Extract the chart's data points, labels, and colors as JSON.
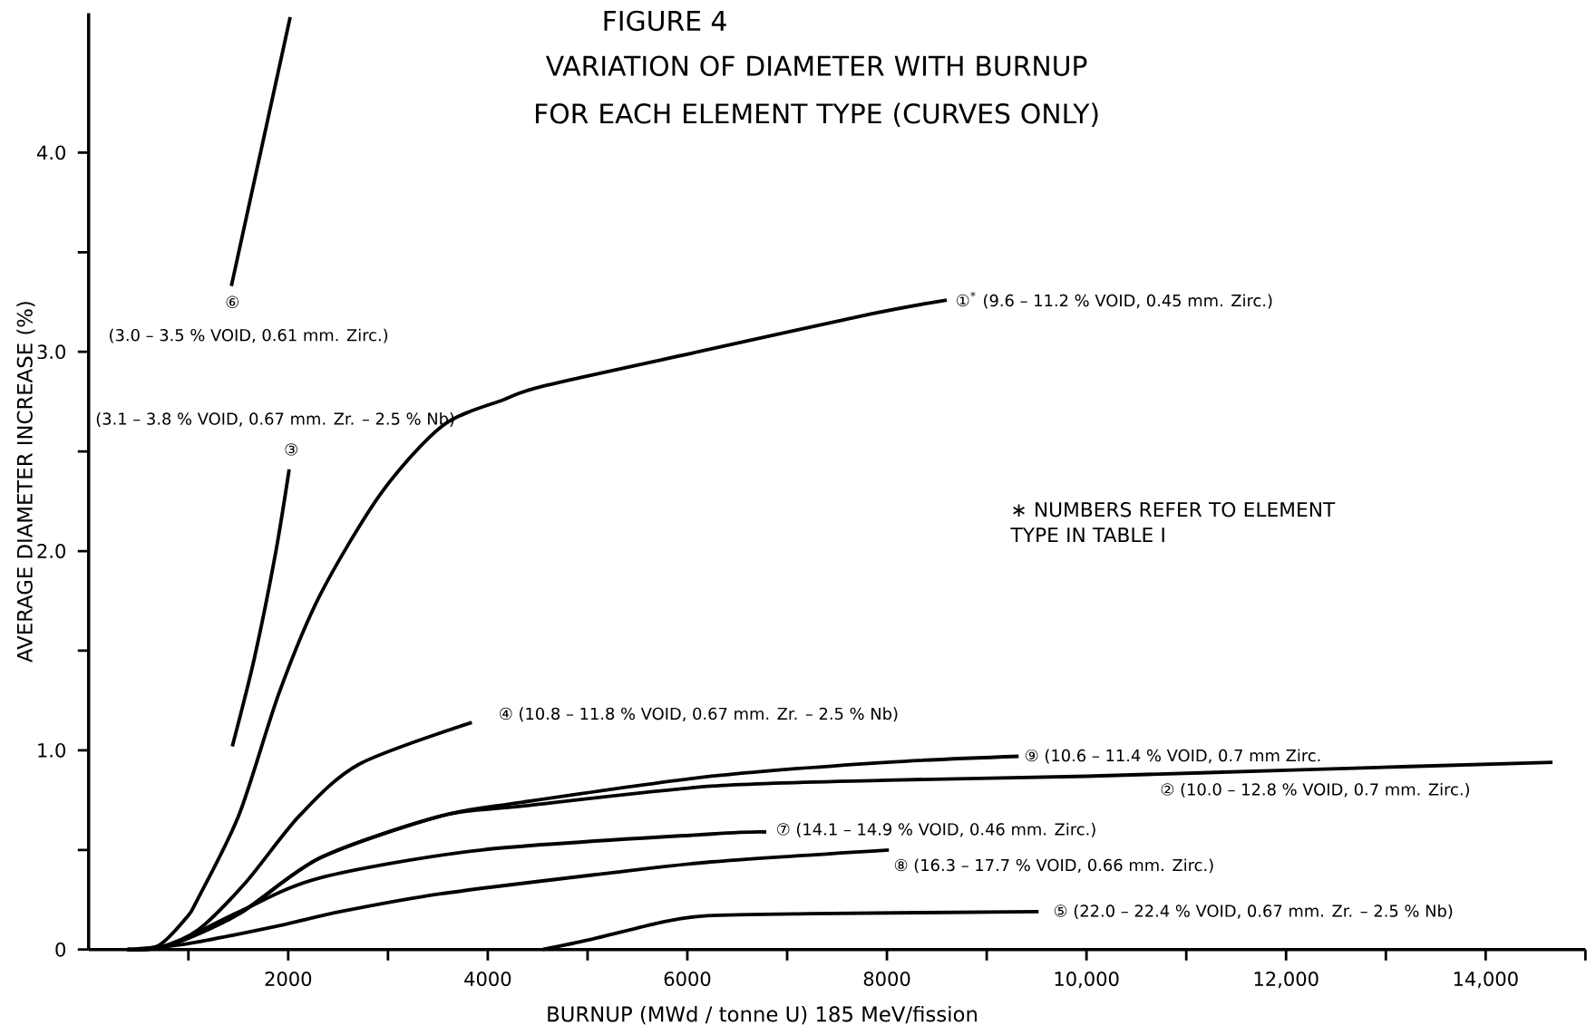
{
  "chart_data": {
    "type": "line",
    "title": "FIGURE 4",
    "subtitle": "VARIATION OF DIAMETER WITH BURNUP FOR EACH ELEMENT TYPE (CURVES ONLY)",
    "xlabel": "BURNUP (MWd / tonne U) 185 MeV/fission",
    "ylabel": "AVERAGE DIAMETER INCREASE (%)",
    "xlim": [
      0,
      15000
    ],
    "ylim": [
      0,
      4.7
    ],
    "xticks": [
      {
        "value": 1000,
        "label": null
      },
      2000,
      {
        "value": 3000,
        "label": null
      },
      4000,
      {
        "value": 5000,
        "label": null
      },
      6000,
      {
        "value": 7000,
        "label": null
      },
      8000,
      {
        "value": 9000,
        "label": null
      },
      {
        "value": 10000,
        "label": "10,000"
      },
      {
        "value": 11000,
        "label": null
      },
      {
        "value": 12000,
        "label": "12,000"
      },
      {
        "value": 13000,
        "label": null
      },
      {
        "value": 14000,
        "label": "14,000"
      },
      {
        "value": 15000,
        "label": null
      }
    ],
    "yticks": [
      0,
      {
        "value": 0.5,
        "label": null
      },
      {
        "value": 1.0,
        "label": "1.0"
      },
      {
        "value": 1.5,
        "label": null
      },
      {
        "value": 2.0,
        "label": "2.0"
      },
      {
        "value": 2.5,
        "label": null
      },
      {
        "value": 3.0,
        "label": "3.0"
      },
      {
        "value": 3.5,
        "label": null
      },
      {
        "value": 4.0,
        "label": "4.0"
      }
    ],
    "marker": "none",
    "line_style": "solid",
    "series": [
      {
        "color": "#000000",
        "x": [
          390,
          700,
          980,
          1100,
          1510,
          1910,
          2320,
          2930,
          3550,
          4160,
          4570,
          6200,
          7840,
          8600
        ],
        "values": [
          0,
          0.02,
          0.16,
          0.26,
          0.68,
          1.29,
          1.78,
          2.29,
          2.63,
          2.76,
          2.83,
          3.01,
          3.19,
          3.26
        ]
      },
      {
        "color": "#000000",
        "x": [
          390,
          800,
          1510,
          2320,
          3530,
          4350,
          6240,
          8000,
          10000,
          12000,
          14670
        ],
        "values": [
          0,
          0.02,
          0.18,
          0.46,
          0.67,
          0.72,
          0.82,
          0.85,
          0.87,
          0.9,
          0.94
        ]
      },
      {
        "color": "#000000",
        "x": [
          1440,
          1660,
          1870,
          2010
        ],
        "values": [
          1.02,
          1.46,
          1.98,
          2.41
        ]
      },
      {
        "color": "#000000",
        "x": [
          390,
          700,
          1100,
          1580,
          2110,
          2710,
          3840
        ],
        "values": [
          0,
          0.01,
          0.1,
          0.34,
          0.67,
          0.93,
          1.14
        ]
      },
      {
        "color": "#000000",
        "x": [
          4550,
          5030,
          5770,
          6200,
          7220,
          9520
        ],
        "values": [
          0,
          0.05,
          0.14,
          0.17,
          0.18,
          0.19
        ]
      },
      {
        "color": "#000000",
        "x": [
          1430,
          2020
        ],
        "values": [
          3.33,
          4.68
        ]
      },
      {
        "color": "#000000",
        "x": [
          390,
          800,
          1510,
          2320,
          3940,
          6240,
          6790
        ],
        "values": [
          0,
          0.02,
          0.19,
          0.36,
          0.5,
          0.58,
          0.59
        ]
      },
      {
        "color": "#000000",
        "x": [
          390,
          1000,
          1910,
          2520,
          3530,
          5150,
          6240,
          8020
        ],
        "values": [
          0,
          0.03,
          0.12,
          0.19,
          0.28,
          0.38,
          0.44,
          0.5
        ]
      },
      {
        "color": "#000000",
        "x": [
          390,
          800,
          1510,
          2320,
          3530,
          4350,
          6240,
          8000,
          9320
        ],
        "values": [
          0,
          0.02,
          0.18,
          0.46,
          0.67,
          0.74,
          0.87,
          0.94,
          0.97
        ]
      }
    ],
    "annotations": [
      "①$^{*}$ (9.6 – 11.2 % VOID, 0.45 mm. Zirc.)",
      "② (10.0 – 12.8 % VOID, 0.7 mm. Zirc.)",
      "(3.1 – 3.8 % VOID, 0.67 mm. Zr. – 2.5 % Nb)",
      "③",
      "④ (10.8 – 11.8 % VOID, 0.67 mm. Zr. – 2.5 % Nb)",
      "⑤ (22.0 – 22.4 % VOID, 0.67 mm. Zr. – 2.5 % Nb)",
      "⑥",
      "(3.0 – 3.5 % VOID, 0.61 mm. Zirc.)",
      "⑦ (14.1 – 14.9 % VOID, 0.46 mm. Zirc.)",
      "⑧ (16.3 – 17.7 % VOID, 0.66 mm. Zirc.)",
      "⑨ (10.6 – 11.4 % VOID, 0.7 mm Zirc.",
      "∗ NUMBERS REFER TO ELEMENT TYPE IN TABLE I"
    ]
  }
}
